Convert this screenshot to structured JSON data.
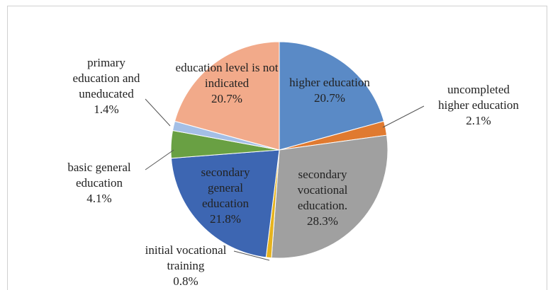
{
  "chart_data": {
    "type": "pie",
    "categories": [
      "higher education",
      "uncompleted higher education",
      "secondary vocational education.",
      "initial vocational training",
      "secondary general education",
      "basic general education",
      "primary education and uneducated",
      "education level is not indicated"
    ],
    "values": [
      20.7,
      2.1,
      28.3,
      0.8,
      21.8,
      4.1,
      1.4,
      20.7
    ],
    "value_labels": [
      "20.7%",
      "2.1%",
      "28.3%",
      "0.8%",
      "21.8%",
      "4.1%",
      "1.4%",
      "20.7%"
    ],
    "colors": [
      "#5a8ac6",
      "#e07a30",
      "#a0a0a0",
      "#e6b31e",
      "#3d66b2",
      "#69a043",
      "#a4bfe6",
      "#f2aa8a"
    ]
  }
}
